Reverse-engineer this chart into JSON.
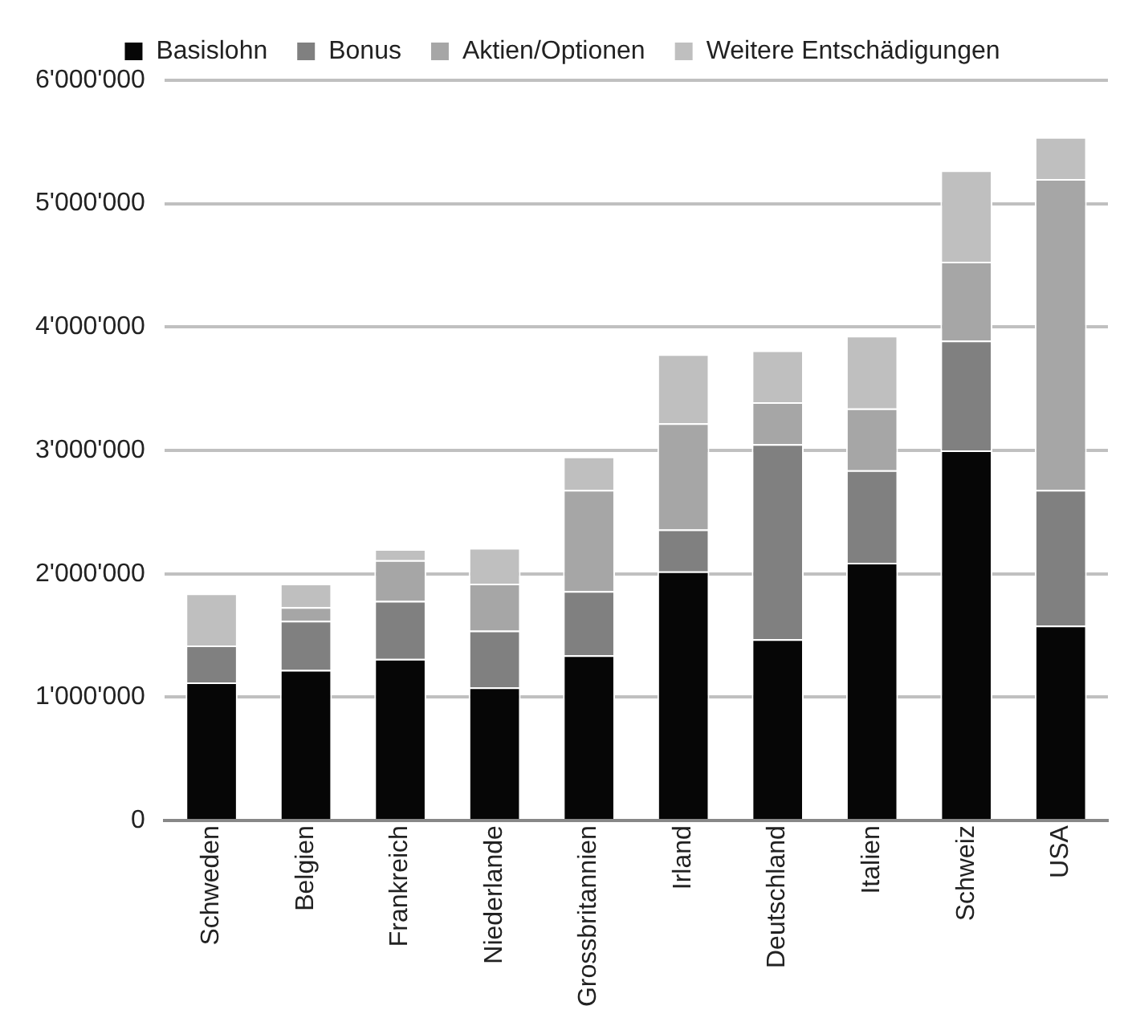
{
  "chart_data": {
    "type": "bar",
    "stacked": true,
    "categories": [
      "Schweden",
      "Belgien",
      "Frankreich",
      "Niederlande",
      "Grossbritannien",
      "Irland",
      "Deutschland",
      "Italien",
      "Schweiz",
      "USA"
    ],
    "series": [
      {
        "name": "Basislohn",
        "color": "#060606",
        "values": [
          1120000,
          1220000,
          1310000,
          1080000,
          1340000,
          2020000,
          1470000,
          2090000,
          3000000,
          1580000
        ]
      },
      {
        "name": "Bonus",
        "color": "#808080",
        "values": [
          300000,
          400000,
          470000,
          460000,
          520000,
          340000,
          1580000,
          750000,
          890000,
          1100000
        ]
      },
      {
        "name": "Aktien/Optionen",
        "color": "#a6a6a6",
        "values": [
          0,
          110000,
          330000,
          380000,
          820000,
          860000,
          340000,
          500000,
          640000,
          2520000
        ]
      },
      {
        "name": "Weitere Entschädigungen",
        "color": "#bfbfbf",
        "values": [
          420000,
          190000,
          90000,
          290000,
          270000,
          560000,
          420000,
          590000,
          740000,
          340000
        ]
      }
    ],
    "ylim": [
      0,
      6000000
    ],
    "yticks": [
      {
        "value": 0,
        "label": "0"
      },
      {
        "value": 1000000,
        "label": "1'000'000"
      },
      {
        "value": 2000000,
        "label": "2'000'000"
      },
      {
        "value": 3000000,
        "label": "3'000'000"
      },
      {
        "value": 4000000,
        "label": "4'000'000"
      },
      {
        "value": 5000000,
        "label": "5'000'000"
      },
      {
        "value": 6000000,
        "label": "6'000'000"
      }
    ],
    "grid": "y",
    "legend": "top"
  }
}
